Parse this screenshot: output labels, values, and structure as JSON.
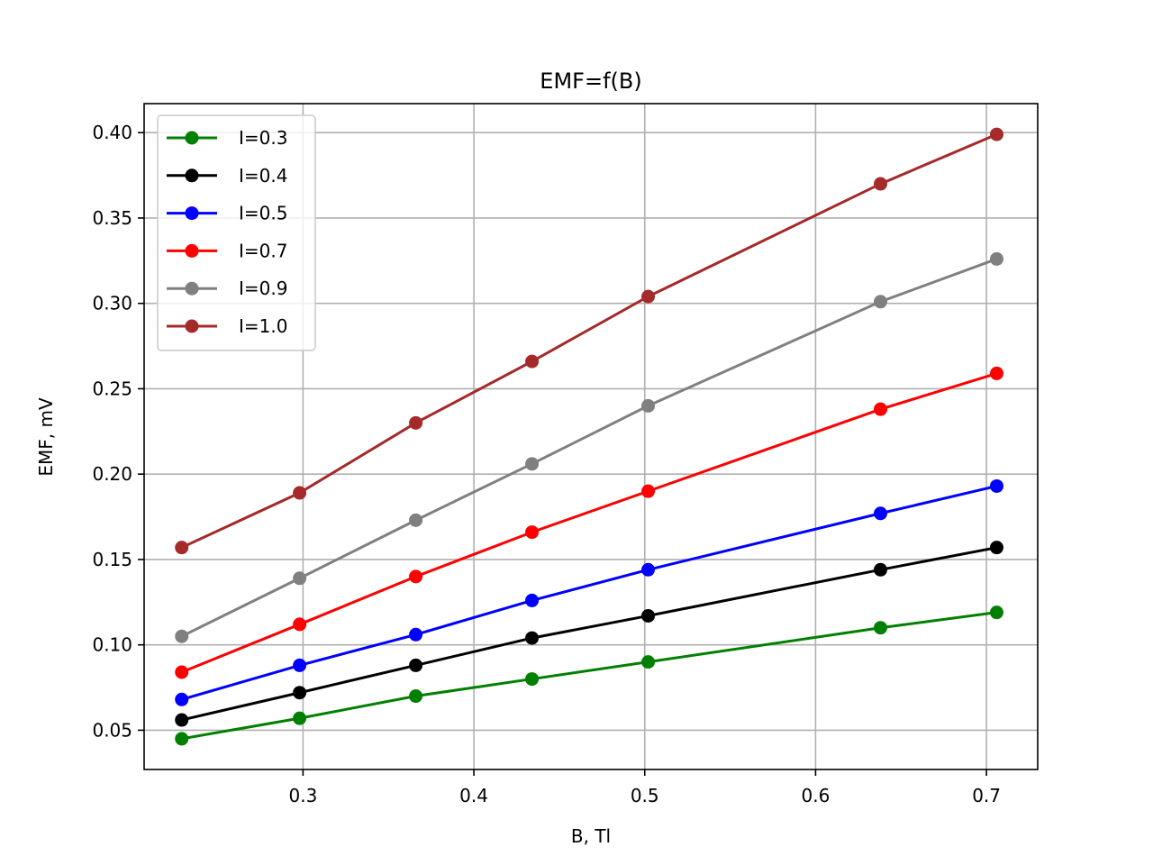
{
  "chart_data": {
    "type": "line",
    "title": "EMF=f(B)",
    "xlabel": "B, Tl",
    "ylabel": "EMF, mV",
    "xlim": [
      0.207,
      0.73
    ],
    "ylim": [
      0.027,
      0.417
    ],
    "xticks": [
      0.3,
      0.4,
      0.5,
      0.6,
      0.7
    ],
    "xtick_labels": [
      "0.3",
      "0.4",
      "0.5",
      "0.6",
      "0.7"
    ],
    "yticks": [
      0.05,
      0.1,
      0.15,
      0.2,
      0.25,
      0.3,
      0.35,
      0.4
    ],
    "ytick_labels": [
      "0.05",
      "0.10",
      "0.15",
      "0.20",
      "0.25",
      "0.30",
      "0.35",
      "0.40"
    ],
    "grid": true,
    "legend_position": "top-left",
    "x": [
      0.229,
      0.298,
      0.366,
      0.434,
      0.502,
      0.638,
      0.706
    ],
    "series": [
      {
        "name": "I=0.3",
        "color": "#008000",
        "values": [
          0.045,
          0.057,
          0.07,
          0.08,
          0.09,
          0.11,
          0.119
        ]
      },
      {
        "name": "I=0.4",
        "color": "#000000",
        "values": [
          0.056,
          0.072,
          0.088,
          0.104,
          0.117,
          0.144,
          0.157
        ]
      },
      {
        "name": "I=0.5",
        "color": "#0000ff",
        "values": [
          0.068,
          0.088,
          0.106,
          0.126,
          0.144,
          0.177,
          0.193
        ]
      },
      {
        "name": "I=0.7",
        "color": "#ff0000",
        "values": [
          0.084,
          0.112,
          0.14,
          0.166,
          0.19,
          0.238,
          0.259
        ]
      },
      {
        "name": "I=0.9",
        "color": "#808080",
        "values": [
          0.105,
          0.139,
          0.173,
          0.206,
          0.24,
          0.301,
          0.326
        ]
      },
      {
        "name": "I=1.0",
        "color": "#a52a2a",
        "values": [
          0.157,
          0.189,
          0.23,
          0.266,
          0.304,
          0.37,
          0.399
        ]
      }
    ]
  }
}
